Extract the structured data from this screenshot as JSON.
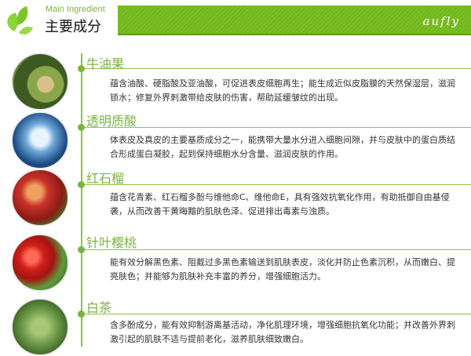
{
  "header": {
    "subtitle_en": "Main Ingredient",
    "title": "主要成分",
    "brand": "aufly",
    "accent": "#7cb342"
  },
  "ingredients": [
    {
      "name": "牛油果",
      "image": "avocado",
      "desc": "蕴含油酸、硬脂酸及亚油酸，可促进表皮细胞再生；能生成近似皮脂膜的天然保湿层，滋润锁水；修复外界刺激带给皮肤的伤害，帮助延缓皱纹的出现。"
    },
    {
      "name": "透明质酸",
      "image": "water-splash",
      "desc": "体表皮及真皮的主要基质成分之一，能携带大量水分进入细胞间隙，并与皮肤中的蛋白质结合形成蛋白凝胶，起到保持细胞水分含量、滋润皮肤的作用。"
    },
    {
      "name": "红石榴",
      "image": "pomegranate",
      "desc": "蕴含花青素、红石榴多酚与维他命C、维他命E，具有强效抗氧化作用，有助抵御自由基侵袭，从而改善干黄晦黯的肌肤色泽、促进排出毒素与浊质。"
    },
    {
      "name": "针叶樱桃",
      "image": "acerola-cherry",
      "desc": "能有效分解黑色素、阻截过多黑色素输送到肌肤表皮，淡化并防止色素沉积，从而嫩白、提亮肤色；并能够为肌肤补充丰富的养分，增强细胞活力。"
    },
    {
      "name": "白茶",
      "image": "white-tea",
      "desc": "含多酚成分，能有效抑制游离基活动，净化肌理环境，增强细胞抗氧化功能；并改善外界刺激引起的肌肤不适与提前老化，滋养肌肤细致嫩白。"
    }
  ]
}
